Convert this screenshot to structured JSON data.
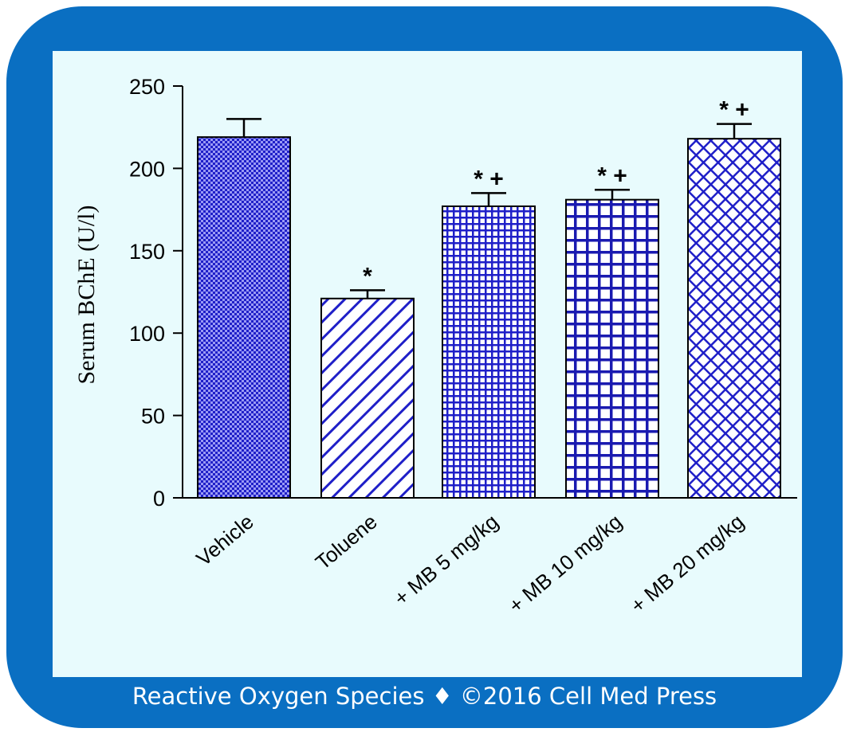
{
  "footer": {
    "text": "Reactive Oxygen Species ♦ ©2016 Cell Med Press"
  },
  "colors": {
    "frame": "#0a6fc2",
    "panel_bg": "#e8fbfd",
    "bar_pattern": "#1f1fc8",
    "axis": "#000000"
  },
  "chart_data": {
    "type": "bar",
    "title": "",
    "xlabel": "",
    "ylabel": "Serum BChE (U/l)",
    "ylim": [
      0,
      250
    ],
    "yticks": [
      0,
      50,
      100,
      150,
      200,
      250
    ],
    "categories": [
      "Vehicle",
      "Toluene",
      "+ MB 5 mg/kg",
      "+ MB 10 mg/kg",
      "+ MB 20 mg/kg"
    ],
    "values": [
      219,
      121,
      177,
      181,
      218
    ],
    "errors": [
      11,
      5,
      8,
      6,
      9
    ],
    "annotations": [
      "",
      "*",
      "*+",
      "*+",
      "*+"
    ],
    "patterns": [
      "fine-checker",
      "diagonal-hatch",
      "fine-grid",
      "coarse-grid",
      "crosshatch"
    ],
    "grid": false,
    "legend": "none"
  }
}
